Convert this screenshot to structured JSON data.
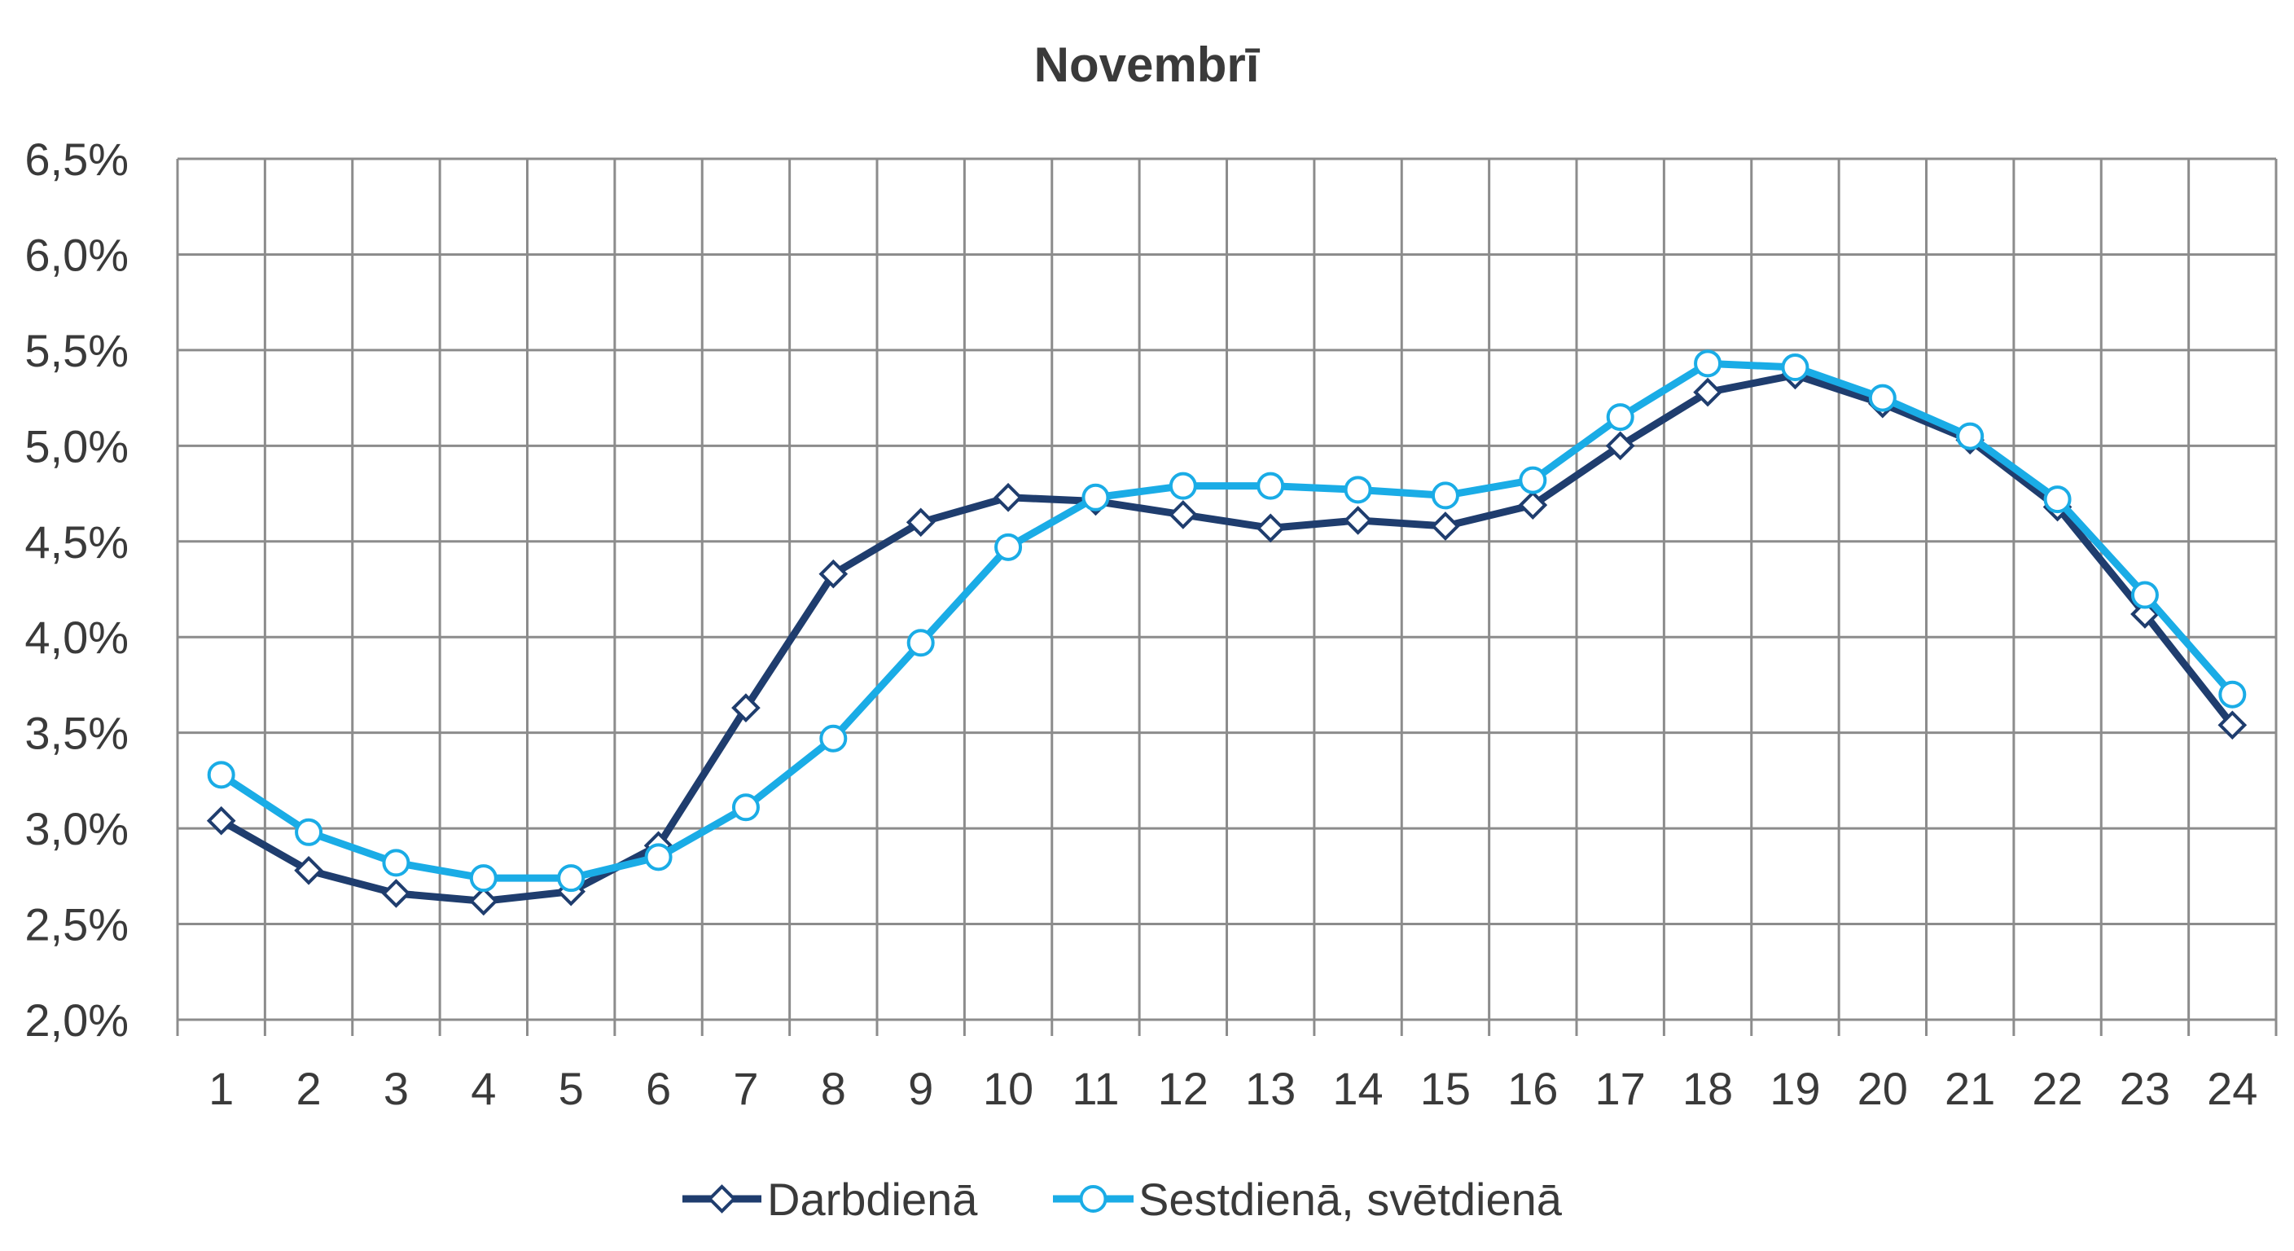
{
  "chart_data": {
    "type": "line",
    "title": "Novembrī",
    "xlabel": "",
    "ylabel": "",
    "categories": [
      "1",
      "2",
      "3",
      "4",
      "5",
      "6",
      "7",
      "8",
      "9",
      "10",
      "11",
      "12",
      "13",
      "14",
      "15",
      "16",
      "17",
      "18",
      "19",
      "20",
      "21",
      "22",
      "23",
      "24"
    ],
    "ylim": [
      2.0,
      6.5
    ],
    "yticks": [
      2.0,
      2.5,
      3.0,
      3.5,
      4.0,
      4.5,
      5.0,
      5.5,
      6.0,
      6.5
    ],
    "ytick_labels": [
      "2,0%",
      "2,5%",
      "3,0%",
      "3,5%",
      "4,0%",
      "4,5%",
      "5,0%",
      "5,5%",
      "6,0%",
      "6,5%"
    ],
    "grid": true,
    "legend_position": "bottom",
    "series": [
      {
        "name": "Darbdienā",
        "color": "#1f3d6e",
        "marker": "diamond",
        "values": [
          3.04,
          2.78,
          2.66,
          2.62,
          2.67,
          2.91,
          3.63,
          4.33,
          4.6,
          4.73,
          4.71,
          4.64,
          4.57,
          4.61,
          4.58,
          4.69,
          5.0,
          5.28,
          5.37,
          5.22,
          5.03,
          4.68,
          4.12,
          3.54
        ]
      },
      {
        "name": "Sestdienā, svētdienā",
        "color": "#1aace6",
        "marker": "circle",
        "values": [
          3.28,
          2.98,
          2.82,
          2.74,
          2.74,
          2.85,
          3.11,
          3.47,
          3.97,
          4.47,
          4.73,
          4.79,
          4.79,
          4.77,
          4.74,
          4.82,
          5.15,
          5.43,
          5.41,
          5.25,
          5.05,
          4.72,
          4.22,
          3.7
        ]
      }
    ]
  }
}
